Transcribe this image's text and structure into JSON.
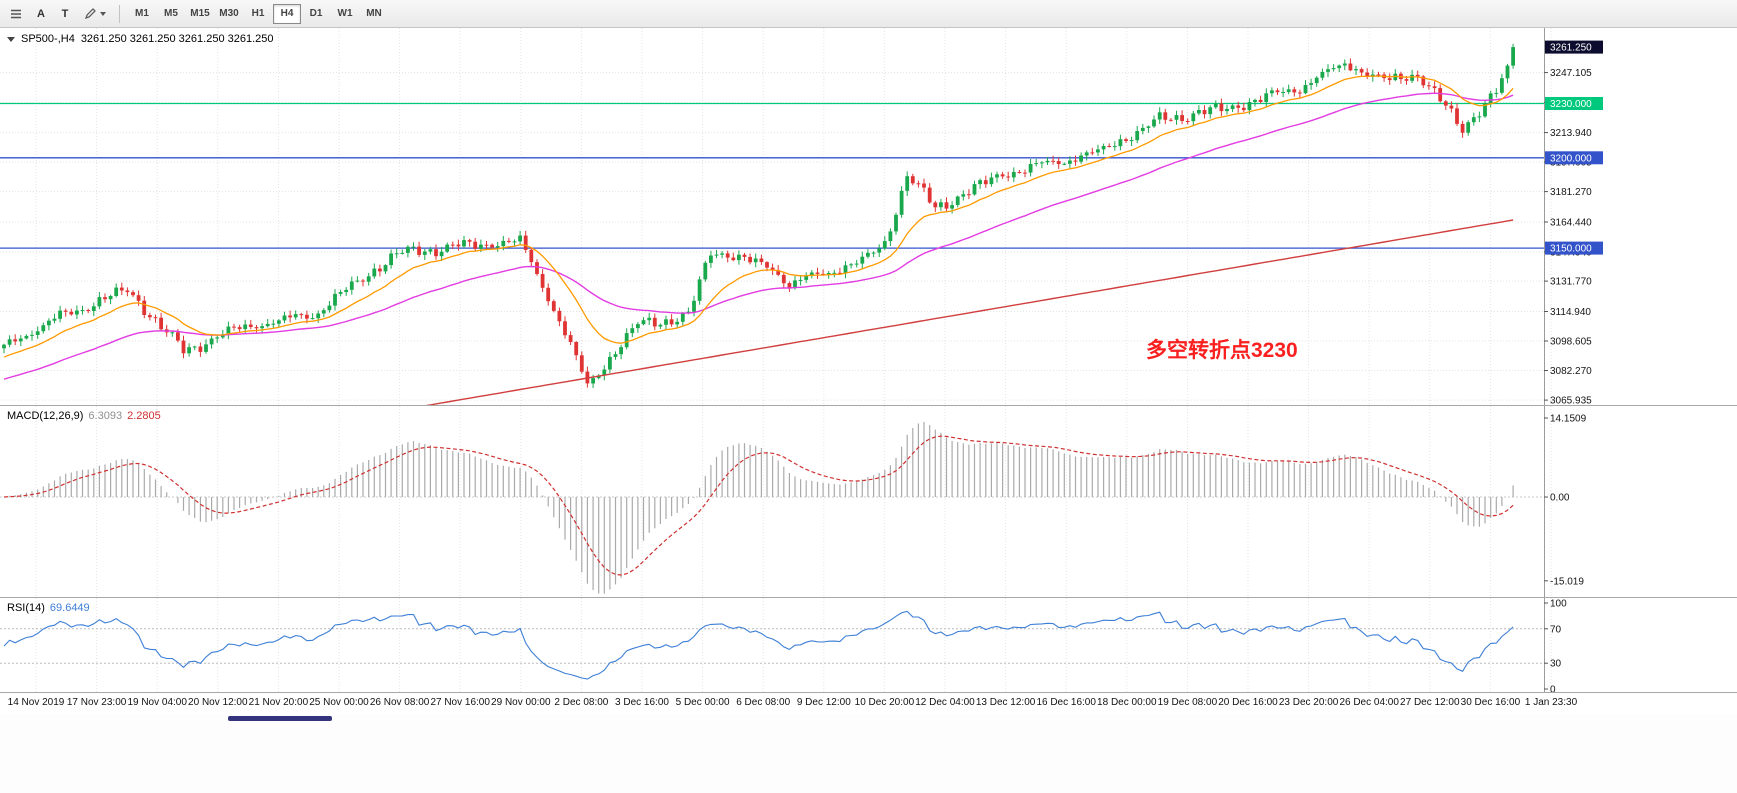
{
  "toolbar": {
    "font_button": "A",
    "text_button": "T",
    "timeframes": [
      "M1",
      "M5",
      "M15",
      "M30",
      "H1",
      "H4",
      "D1",
      "W1",
      "MN"
    ],
    "active": "H4"
  },
  "main_chart": {
    "symbol": "SP500-,H4",
    "ohlc": "3261.250 3261.250 3261.250 3261.250",
    "annotation": "多空转折点3230",
    "current_price_label": "3261.250",
    "current_price_box_color": "#0c0c2e"
  },
  "macd_panel": {
    "label": "MACD(12,26,9)",
    "main_value": "6.3093",
    "signal_value": "2.2805",
    "scale_labels": [
      "14.1509",
      "0.00",
      "-15.019"
    ]
  },
  "rsi_panel": {
    "label": "RSI(14)",
    "value": "69.6449",
    "scale_labels": [
      "100",
      "70",
      "30",
      "0"
    ]
  },
  "chart_data": {
    "type": "candlestick",
    "symbol": "SP500-",
    "timeframe": "H4",
    "bars": 270,
    "current_price": 3261.25,
    "y_range": [
      3063.2,
      3271.8
    ],
    "y_ticks": [
      3247.105,
      3230.522,
      3213.94,
      3197.605,
      3181.27,
      3164.44,
      3147.94,
      3131.77,
      3114.94,
      3098.605,
      3082.27,
      3065.935
    ],
    "close_waypoints": [
      [
        0,
        3096
      ],
      [
        10,
        3112
      ],
      [
        22,
        3127
      ],
      [
        32,
        3093
      ],
      [
        42,
        3106
      ],
      [
        55,
        3113
      ],
      [
        70,
        3147
      ],
      [
        81,
        3151
      ],
      [
        92,
        3154
      ],
      [
        98,
        3117
      ],
      [
        104,
        3074
      ],
      [
        113,
        3108
      ],
      [
        122,
        3112
      ],
      [
        126,
        3149
      ],
      [
        137,
        3139
      ],
      [
        140,
        3130
      ],
      [
        153,
        3143
      ],
      [
        157,
        3152
      ],
      [
        161,
        3191
      ],
      [
        166,
        3172
      ],
      [
        178,
        3191
      ],
      [
        195,
        3203
      ],
      [
        206,
        3221
      ],
      [
        219,
        3228
      ],
      [
        231,
        3239
      ],
      [
        239,
        3252
      ],
      [
        247,
        3242
      ],
      [
        252,
        3247
      ],
      [
        260,
        3216
      ],
      [
        266,
        3237
      ],
      [
        268,
        3251
      ],
      [
        269,
        3261.25
      ]
    ],
    "horizontal_levels": [
      {
        "price": 3230.0,
        "label": "3230.000",
        "color": "#00c97e"
      },
      {
        "price": 3200.0,
        "label": "3200.000",
        "color": "#3353cb"
      },
      {
        "price": 3150.0,
        "label": "3150.000",
        "color": "#3353cb"
      }
    ],
    "moving_averages": [
      {
        "name": "fast-ma",
        "color": "#ff9a00",
        "period": 14
      },
      {
        "name": "medium-ma",
        "color": "#e23ce2",
        "period": 45
      },
      {
        "name": "slow-ma",
        "color": "#d23f3f",
        "linear": [
          3023,
          0.53
        ]
      }
    ],
    "x_labels": [
      "14 Nov 2019",
      "17 Nov 23:00",
      "19 Nov 04:00",
      "20 Nov 12:00",
      "21 Nov 20:00",
      "25 Nov 00:00",
      "26 Nov 08:00",
      "27 Nov 16:00",
      "29 Nov 00:00",
      "2 Dec 08:00",
      "3 Dec 16:00",
      "5 Dec 00:00",
      "6 Dec 08:00",
      "9 Dec 12:00",
      "10 Dec 20:00",
      "12 Dec 04:00",
      "13 Dec 12:00",
      "16 Dec 16:00",
      "18 Dec 00:00",
      "19 Dec 08:00",
      "20 Dec 16:00",
      "23 Dec 20:00",
      "26 Dec 04:00",
      "27 Dec 12:00",
      "30 Dec 16:00",
      "1 Jan 23:30"
    ],
    "macd": {
      "params": [
        12,
        26,
        9
      ],
      "scale": [
        14.1509,
        0,
        -15.019
      ]
    },
    "rsi": {
      "period": 14,
      "levels": [
        70,
        30
      ]
    },
    "colors": {
      "up": "#19a84c",
      "down": "#e03434",
      "histogram": "#aaaaaa",
      "signal": "#d03030",
      "rsi_line": "#3d7fd6"
    }
  }
}
